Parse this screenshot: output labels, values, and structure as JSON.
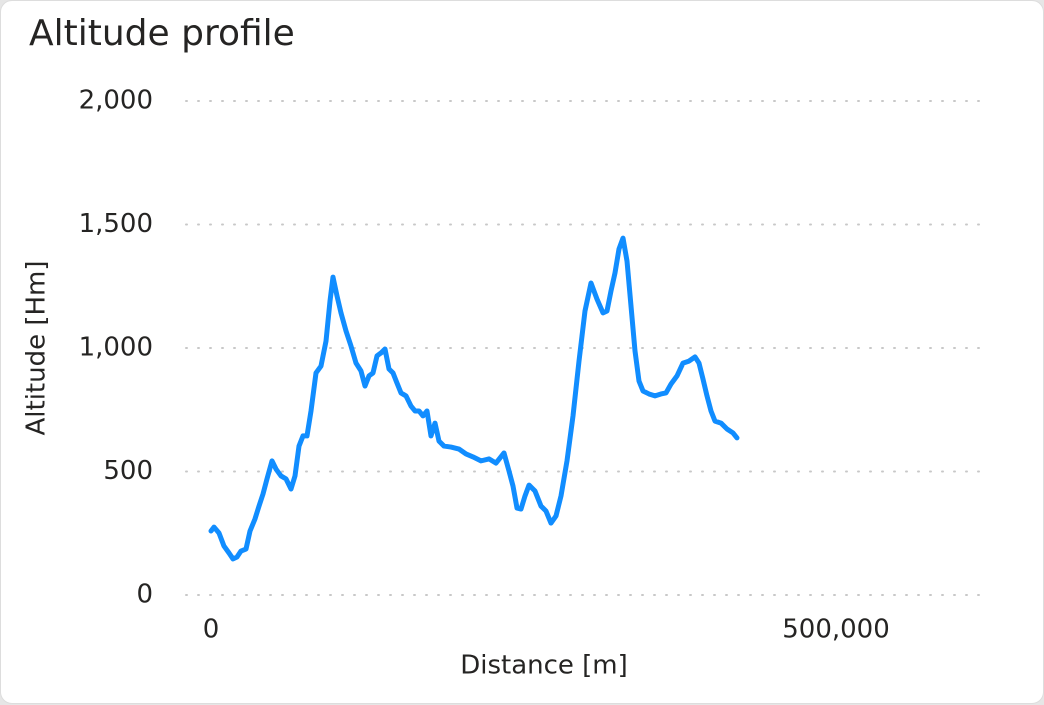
{
  "chart_data": {
    "type": "line",
    "title": "Altitude profile",
    "x_label": "Distance [m]",
    "y_label": "Altitude [Hm]",
    "x": [
      0,
      2400,
      6400,
      10400,
      14400,
      17600,
      20800,
      24000,
      28000,
      31200,
      35200,
      38400,
      41600,
      44800,
      48800,
      52000,
      56000,
      60000,
      64000,
      67200,
      70400,
      73600,
      76800,
      80000,
      84000,
      88000,
      92000,
      95200,
      97600,
      100800,
      104000,
      108000,
      112000,
      116000,
      120000,
      123200,
      126400,
      129600,
      132800,
      136000,
      139200,
      142400,
      145600,
      148800,
      152000,
      156000,
      160000,
      163200,
      166400,
      169600,
      172800,
      176000,
      179200,
      182400,
      186400,
      192000,
      198400,
      204000,
      209600,
      216000,
      222400,
      228000,
      234400,
      238400,
      241600,
      244800,
      248000,
      251200,
      254400,
      259200,
      264000,
      268000,
      272000,
      276000,
      280000,
      284800,
      289600,
      294400,
      299200,
      304000,
      308800,
      313600,
      316800,
      320000,
      323200,
      326400,
      329600,
      332800,
      336000,
      339200,
      342400,
      345600,
      350400,
      355200,
      360000,
      364000,
      368000,
      372800,
      377600,
      382400,
      387200,
      390400,
      393600,
      396800,
      400000,
      403200,
      408000,
      412800,
      417600,
      420800
    ],
    "series": [
      {
        "name": "Altitude",
        "color": "#118dff",
        "values": [
          259,
          275,
          251,
          198,
          170,
          146,
          154,
          178,
          186,
          259,
          308,
          360,
          409,
          470,
          543,
          510,
          482,
          470,
          429,
          482,
          603,
          644,
          644,
          745,
          899,
          927,
          1028,
          1190,
          1287,
          1211,
          1142,
          1069,
          1008,
          939,
          907,
          846,
          887,
          899,
          968,
          980,
          996,
          915,
          899,
          858,
          818,
          806,
          765,
          745,
          745,
          725,
          745,
          644,
          696,
          623,
          603,
          599,
          591,
          571,
          559,
          543,
          551,
          534,
          575,
          502,
          441,
          352,
          348,
          401,
          445,
          421,
          360,
          340,
          291,
          320,
          401,
          543,
          725,
          947,
          1150,
          1263,
          1198,
          1142,
          1150,
          1231,
          1304,
          1401,
          1445,
          1352,
          1170,
          988,
          866,
          826,
          814,
          806,
          814,
          818,
          854,
          887,
          939,
          947,
          964,
          939,
          874,
          806,
          745,
          704,
          696,
          672,
          656,
          636
        ]
      }
    ],
    "xlim": [
      -20000,
      620000
    ],
    "xticks": [
      0,
      {
        "value": 500000,
        "label": "500,000"
      }
    ],
    "ylim": [
      0,
      2000
    ],
    "yticks": [
      0,
      500,
      {
        "value": 1000,
        "label": "1,000"
      },
      {
        "value": 1500,
        "label": "1,500"
      },
      {
        "value": 2000,
        "label": "2,000"
      }
    ],
    "grid": true
  }
}
